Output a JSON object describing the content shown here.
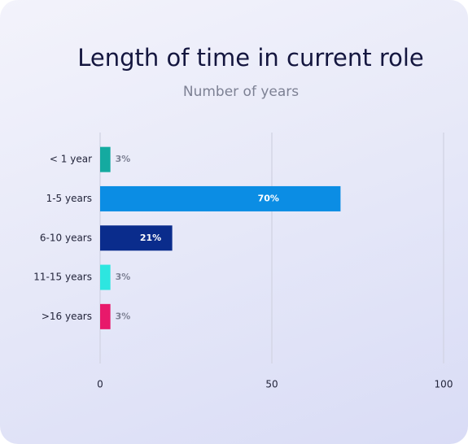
{
  "chart_data": {
    "type": "bar",
    "orientation": "horizontal",
    "title": "Length of time in current role",
    "subtitle": "Number of years",
    "categories": [
      "< 1 year",
      "1-5 years",
      "6-10 years",
      "11-15 years",
      ">16 years"
    ],
    "values": [
      3,
      70,
      21,
      3,
      3
    ],
    "value_labels": [
      "3%",
      "70%",
      "21%",
      "3%",
      "3%"
    ],
    "colors": [
      "#14aaa0",
      "#0b8de4",
      "#0a2c8c",
      "#2de6e0",
      "#e8196b"
    ],
    "xlim": [
      0,
      100
    ],
    "xticks": [
      0,
      50,
      100
    ],
    "grid": true
  }
}
